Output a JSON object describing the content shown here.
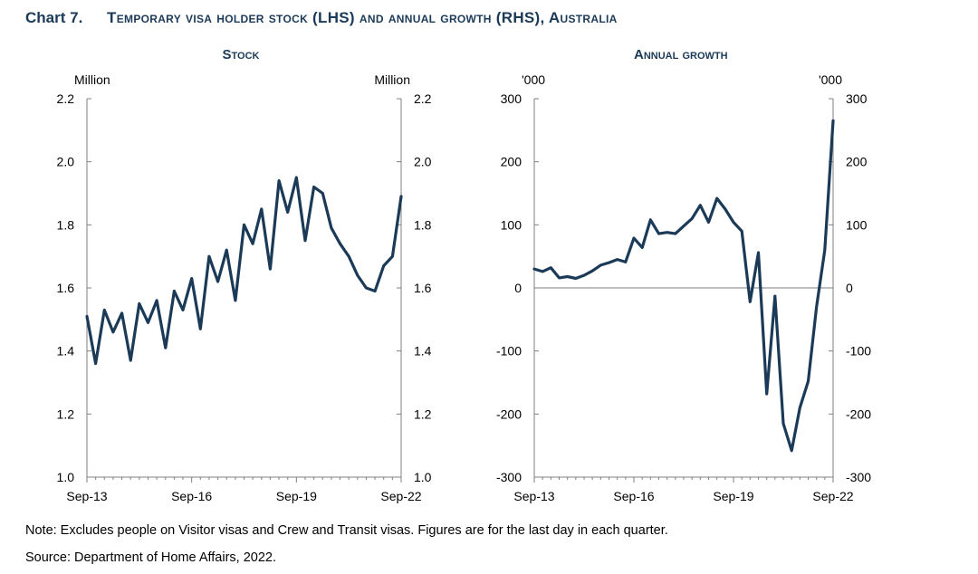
{
  "header": {
    "number": "Chart 7.",
    "title": "Temporary visa holder stock (LHS) and annual growth (RHS), Australia"
  },
  "note": "Note: Excludes people on Visitor visas and Crew and Transit visas. Figures are for the last day in each quarter.",
  "source": "Source: Department of Home Affairs, 2022.",
  "chart_data": [
    {
      "type": "line",
      "title": "Stock",
      "ylabel_left": "Million",
      "ylabel_right": "Million",
      "ylim": [
        1.0,
        2.2
      ],
      "yticks": [
        "1.0",
        "1.2",
        "1.4",
        "1.6",
        "1.8",
        "2.0",
        "2.2"
      ],
      "xtick_labels": [
        "Sep-13",
        "Sep-16",
        "Sep-19",
        "Sep-22"
      ],
      "line_color": "#1b3a57",
      "series": [
        {
          "values": [
            1.51,
            1.36,
            1.53,
            1.46,
            1.52,
            1.37,
            1.55,
            1.49,
            1.56,
            1.41,
            1.59,
            1.53,
            1.63,
            1.47,
            1.7,
            1.62,
            1.72,
            1.56,
            1.8,
            1.74,
            1.85,
            1.66,
            1.94,
            1.84,
            1.95,
            1.75,
            1.92,
            1.9,
            1.79,
            1.74,
            1.7,
            1.64,
            1.6,
            1.59,
            1.67,
            1.7,
            1.89
          ]
        }
      ]
    },
    {
      "type": "line",
      "title": "Annual growth",
      "ylabel_left": "'000",
      "ylabel_right": "'000",
      "ylim": [
        -300,
        300
      ],
      "yticks": [
        "-300",
        "-200",
        "-100",
        "0",
        "100",
        "200",
        "300"
      ],
      "xtick_labels": [
        "Sep-13",
        "Sep-16",
        "Sep-19",
        "Sep-22"
      ],
      "line_color": "#1b3a57",
      "series": [
        {
          "values": [
            30,
            26,
            32,
            16,
            18,
            15,
            20,
            27,
            36,
            40,
            45,
            41,
            79,
            64,
            108,
            86,
            88,
            86,
            98,
            110,
            131,
            104,
            142,
            125,
            104,
            90,
            -22,
            56,
            -168,
            -13,
            -215,
            -258,
            -190,
            -148,
            -30,
            60,
            265
          ]
        }
      ]
    }
  ]
}
